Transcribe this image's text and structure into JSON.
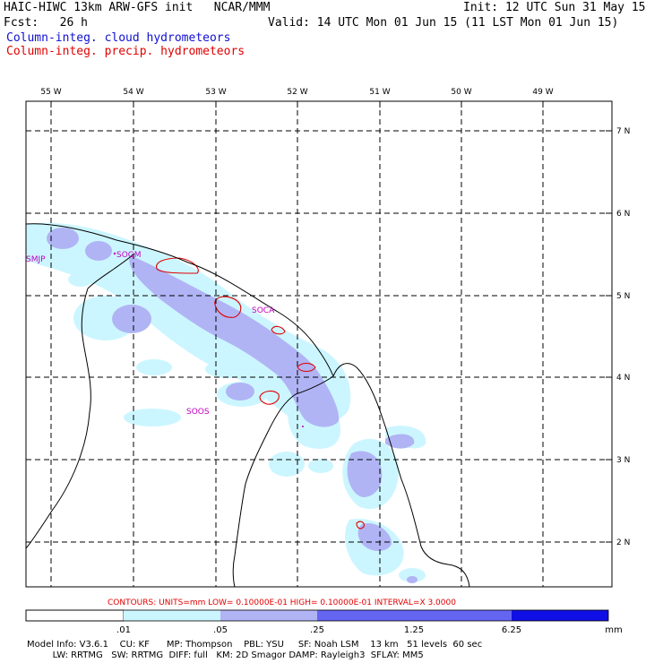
{
  "header": {
    "title_left": "HAIC-HIWC 13km ARW-GFS init   NCAR/MMM",
    "init_text": "Init: 12 UTC Sun 31 May 15",
    "fcst_text": "Fcst:   26 h",
    "valid_text": "Valid: 14 UTC Mon 01 Jun 15 (11 LST Mon 01 Jun 15)",
    "field_cloud": "Column-integ. cloud hydrometeors",
    "field_precip": "Column-integ. precip. hydrometeors"
  },
  "map": {
    "lon_labels": [
      "55 W",
      "54 W",
      "53 W",
      "52 W",
      "51 W",
      "50 W",
      "49 W"
    ],
    "lat_labels": [
      "7 N",
      "6 N",
      "5 N",
      "4 N",
      "3 N",
      "2 N"
    ],
    "stations": [
      "SMJP",
      "SOGM",
      "SOCA",
      "SOOS"
    ]
  },
  "contour_info": "CONTOURS:  UNITS=mm  LOW= 0.10000E-01  HIGH= 0.10000E-01  INTERVAL=X  3.0000",
  "colorbar": {
    "tick_labels": [
      ".01",
      ".05",
      ".25",
      "1.25",
      "6.25"
    ],
    "units": "mm",
    "colors": [
      "#ffffff",
      "#ccf6ff",
      "#b0b4f4",
      "#6466f2",
      "#1010e6"
    ]
  },
  "footer": {
    "line1": "Model Info: V3.6.1    CU: KF      MP: Thompson    PBL: YSU     SF: Noah LSM    13 km   51 levels  60 sec",
    "line2": "         LW: RRTMG   SW: RRTMG  DIFF: full   KM: 2D Smagor DAMP: Rayleigh3  SFLAY: MM5"
  },
  "colors": {
    "cloud_light": "#ccf6ff",
    "cloud_mid": "#b0b4f4",
    "precip_contour": "#e00000",
    "station": "#c000c0"
  }
}
